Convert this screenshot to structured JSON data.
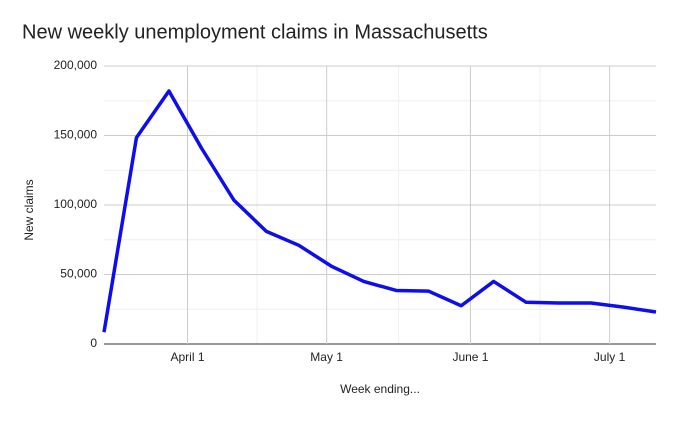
{
  "chart_data": {
    "type": "line",
    "title": "New weekly unemployment claims in Massachusetts",
    "x_label": "Week ending...",
    "y_label": "New claims",
    "x": [
      74,
      81,
      88,
      95,
      102,
      109,
      116,
      123,
      130,
      137,
      144,
      151,
      158,
      165,
      172,
      179,
      186,
      193
    ],
    "series": [
      {
        "name": "New claims",
        "color": "#0d0ded",
        "values": [
          8500,
          148500,
          182000,
          141000,
          103500,
          81000,
          71000,
          56000,
          45000,
          38500,
          38000,
          27500,
          45000,
          30000,
          29500,
          29500,
          26500,
          23000
        ]
      }
    ],
    "xlim": [
      74,
      193
    ],
    "xticks": [
      {
        "value": 92,
        "label": "April 1"
      },
      {
        "value": 122,
        "label": "May 1"
      },
      {
        "value": 153,
        "label": "June 1"
      },
      {
        "value": 183,
        "label": "July 1"
      }
    ],
    "ylim": [
      0,
      200000
    ],
    "yticks": [
      0,
      {
        "value": 50000,
        "label": "50,000"
      },
      {
        "value": 100000,
        "label": "100,000"
      },
      {
        "value": 150000,
        "label": "150,000"
      },
      {
        "value": 200000,
        "label": "200,000"
      }
    ],
    "grid": true
  }
}
